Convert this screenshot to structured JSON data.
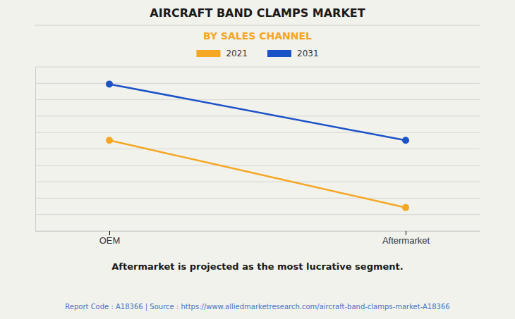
{
  "chart_data": {
    "type": "line",
    "title": "AIRCRAFT BAND CLAMPS MARKET",
    "subtitle": "BY SALES CHANNEL",
    "categories": [
      "OEM",
      "Aftermarket"
    ],
    "series": [
      {
        "name": "2021",
        "color": "#F5A623",
        "values": [
          0.58,
          0.15
        ]
      },
      {
        "name": "2031",
        "color": "#1B52C8",
        "values": [
          0.94,
          0.58
        ]
      }
    ],
    "ylim": [
      0.0,
      1.05
    ],
    "yticks": [
      0,
      0.105,
      0.21,
      0.315,
      0.42,
      0.525,
      0.63,
      0.735,
      0.84,
      0.945,
      1.05
    ],
    "grid": true,
    "tick_labels": "x",
    "marker": "circle",
    "annotations": [
      "Aftermarket is projected as the most lucrative segment.",
      "Report Code : A18366  |  Source : https://www.alliedmarketresearch.com/aircraft-band-clamps-market-A18366"
    ]
  }
}
